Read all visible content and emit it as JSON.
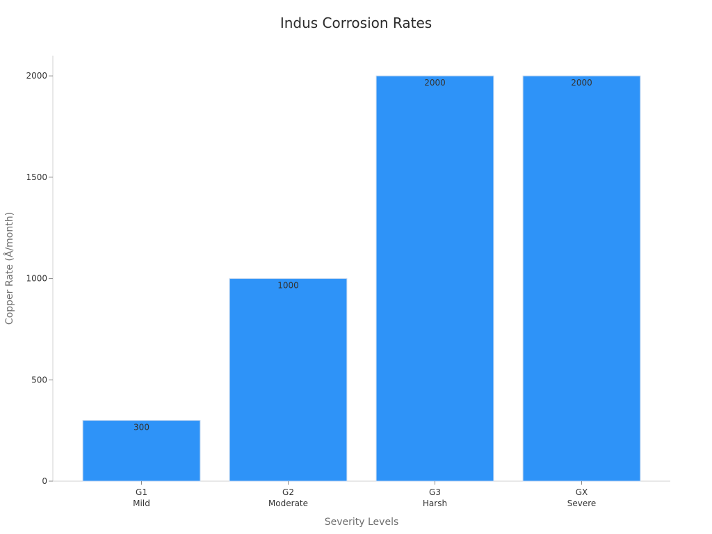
{
  "chart_data": {
    "type": "bar",
    "title": "Indus Corrosion Rates",
    "xlabel": "Severity Levels",
    "ylabel": "Copper Rate (Å/month)",
    "categories": [
      {
        "code": "G1",
        "label": "Mild"
      },
      {
        "code": "G2",
        "label": "Moderate"
      },
      {
        "code": "G3",
        "label": "Harsh"
      },
      {
        "code": "GX",
        "label": "Severe"
      }
    ],
    "values": [
      300,
      1000,
      2000,
      2000
    ],
    "data_labels": [
      "300",
      "1000",
      "2000",
      "2000"
    ],
    "ylim": [
      0,
      2100
    ],
    "yticks": [
      0,
      500,
      1000,
      1500,
      2000
    ],
    "grid": false,
    "bar_color": "#2e93f8",
    "bar_edge_color": "#c8daf0"
  }
}
